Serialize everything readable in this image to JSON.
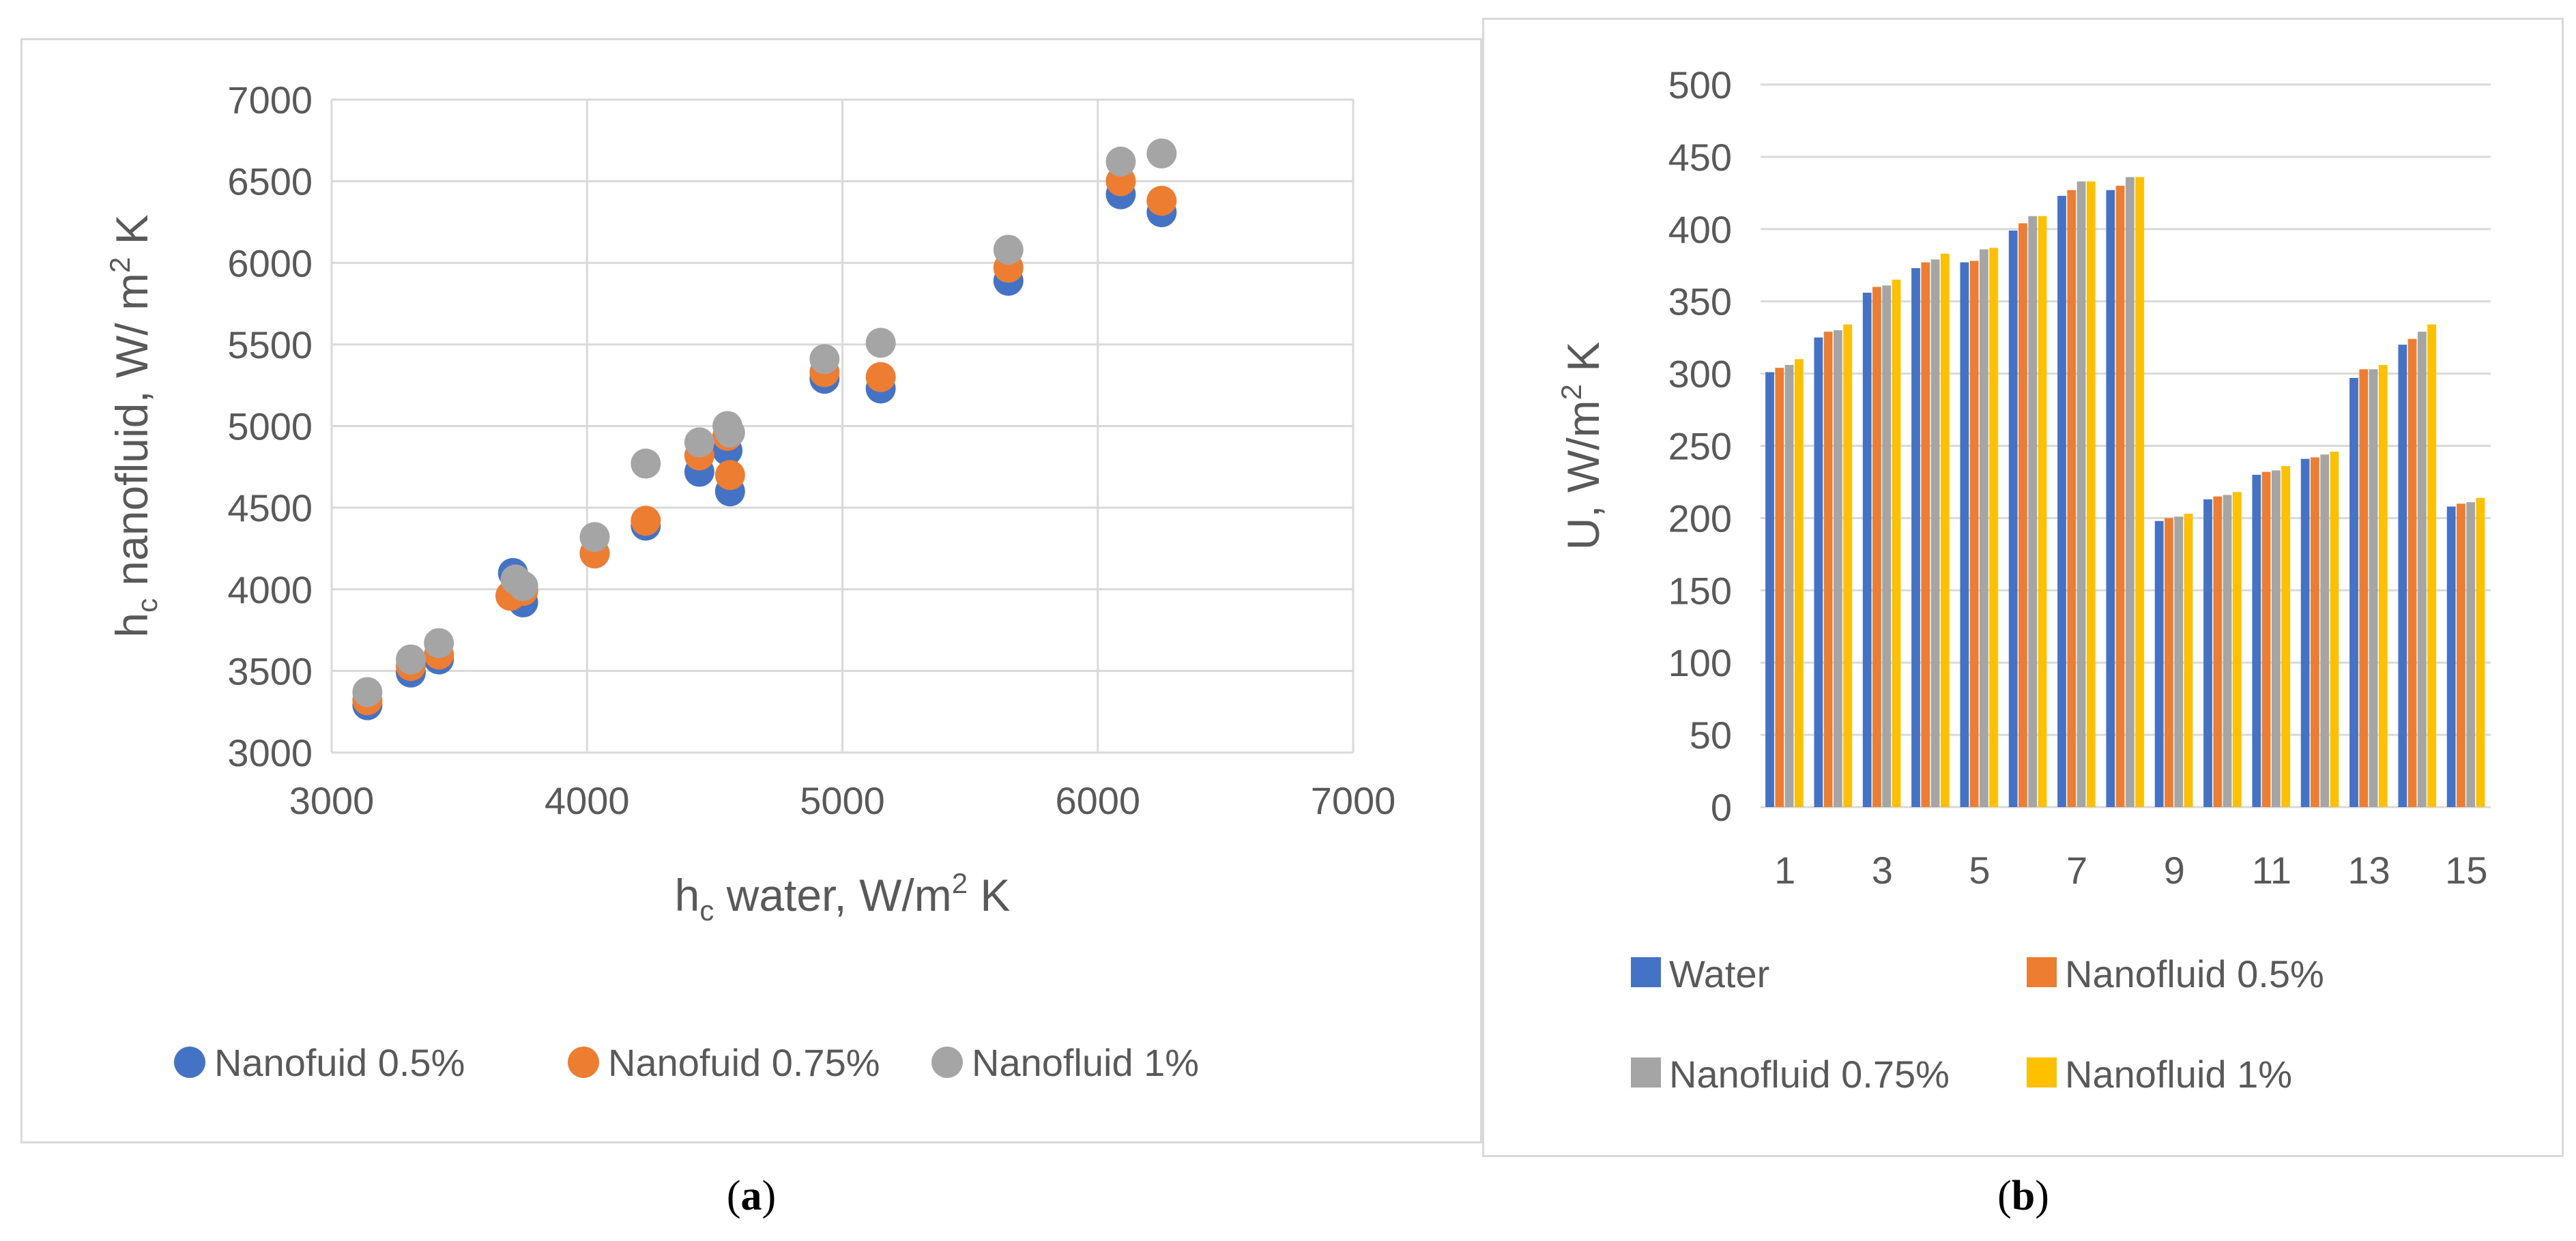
{
  "captions": {
    "a": "a",
    "b": "b"
  },
  "colors": {
    "blue": "#4472c4",
    "orange": "#ed7d31",
    "gray": "#a5a5a5",
    "yellow": "#ffc000",
    "grid": "#d9d9d9",
    "axis_text": "#595959"
  },
  "chart_data": [
    {
      "type": "scatter",
      "title": "",
      "xlabel_main": "h",
      "xlabel_sub": "c",
      "xlabel_rest": " water, W/m",
      "xlabel_sup": "2",
      "xlabel_end": " K",
      "ylabel_main": "h",
      "ylabel_sub": "c",
      "ylabel_rest": " nanofluid, W/ m",
      "ylabel_sup": "2",
      "ylabel_end": " K",
      "xlim": [
        3000,
        7000
      ],
      "ylim": [
        3000,
        7000
      ],
      "x_ticks": [
        "3000",
        "4000",
        "5000",
        "6000",
        "7000"
      ],
      "y_ticks": [
        "3000",
        "3500",
        "4000",
        "4500",
        "5000",
        "5500",
        "6000",
        "6500",
        "7000"
      ],
      "grid": true,
      "legend_position": "bottom",
      "series": [
        {
          "name": "Nanofuid 0.5%",
          "color": "#4472c4",
          "points": [
            [
              3140,
              3290
            ],
            [
              3310,
              3490
            ],
            [
              3420,
              3570
            ],
            [
              3710,
              4100
            ],
            [
              3750,
              3920
            ],
            [
              4030,
              4220
            ],
            [
              4230,
              4390
            ],
            [
              4440,
              4720
            ],
            [
              4560,
              4600
            ],
            [
              4550,
              4850
            ],
            [
              4930,
              5290
            ],
            [
              5150,
              5230
            ],
            [
              5650,
              5890
            ],
            [
              6090,
              6420
            ],
            [
              6250,
              6310
            ]
          ]
        },
        {
          "name": "Nanofuid 0.75%",
          "color": "#ed7d31",
          "points": [
            [
              3140,
              3320
            ],
            [
              3310,
              3530
            ],
            [
              3420,
              3600
            ],
            [
              3700,
              3960
            ],
            [
              3750,
              3990
            ],
            [
              4030,
              4220
            ],
            [
              4230,
              4420
            ],
            [
              4440,
              4820
            ],
            [
              4560,
              4700
            ],
            [
              4550,
              4940
            ],
            [
              4930,
              5330
            ],
            [
              5150,
              5300
            ],
            [
              5650,
              5970
            ],
            [
              6090,
              6500
            ],
            [
              6250,
              6380
            ]
          ]
        },
        {
          "name": "Nanofluid 1%",
          "color": "#a5a5a5",
          "points": [
            [
              3140,
              3370
            ],
            [
              3310,
              3570
            ],
            [
              3420,
              3670
            ],
            [
              3720,
              4060
            ],
            [
              3750,
              4020
            ],
            [
              4030,
              4320
            ],
            [
              4230,
              4770
            ],
            [
              4440,
              4900
            ],
            [
              4560,
              4960
            ],
            [
              4550,
              5000
            ],
            [
              4930,
              5410
            ],
            [
              5150,
              5510
            ],
            [
              5650,
              6080
            ],
            [
              6090,
              6620
            ],
            [
              6250,
              6670
            ]
          ]
        }
      ]
    },
    {
      "type": "bar",
      "title": "",
      "ylabel_main": "U, W/m",
      "ylabel_sup": "2",
      "ylabel_end": " K",
      "xlabel": "",
      "ylim": [
        0,
        500
      ],
      "y_ticks": [
        "0",
        "50",
        "100",
        "150",
        "200",
        "250",
        "300",
        "350",
        "400",
        "450",
        "500"
      ],
      "categories": [
        "1",
        "2",
        "3",
        "4",
        "5",
        "6",
        "7",
        "8",
        "9",
        "10",
        "11",
        "12",
        "13",
        "14",
        "15"
      ],
      "x_tick_labels": [
        "1",
        "3",
        "5",
        "7",
        "9",
        "11",
        "13",
        "15"
      ],
      "grid": true,
      "legend_position": "bottom",
      "series": [
        {
          "name": "Water",
          "color": "#4472c4",
          "values": [
            301,
            325,
            356,
            373,
            377,
            399,
            423,
            427,
            198,
            213,
            230,
            241,
            297,
            320,
            208
          ]
        },
        {
          "name": "Nanofluid 0.5%",
          "color": "#ed7d31",
          "values": [
            304,
            329,
            360,
            377,
            378,
            404,
            427,
            430,
            200,
            215,
            232,
            242,
            303,
            324,
            210
          ]
        },
        {
          "name": "Nanofluid 0.75%",
          "color": "#a5a5a5",
          "values": [
            306,
            330,
            361,
            379,
            386,
            409,
            433,
            436,
            201,
            216,
            233,
            244,
            303,
            329,
            211
          ]
        },
        {
          "name": "Nanofluid 1%",
          "color": "#ffc000",
          "values": [
            310,
            334,
            365,
            383,
            387,
            409,
            433,
            436,
            203,
            218,
            236,
            246,
            306,
            334,
            214
          ]
        }
      ]
    }
  ]
}
